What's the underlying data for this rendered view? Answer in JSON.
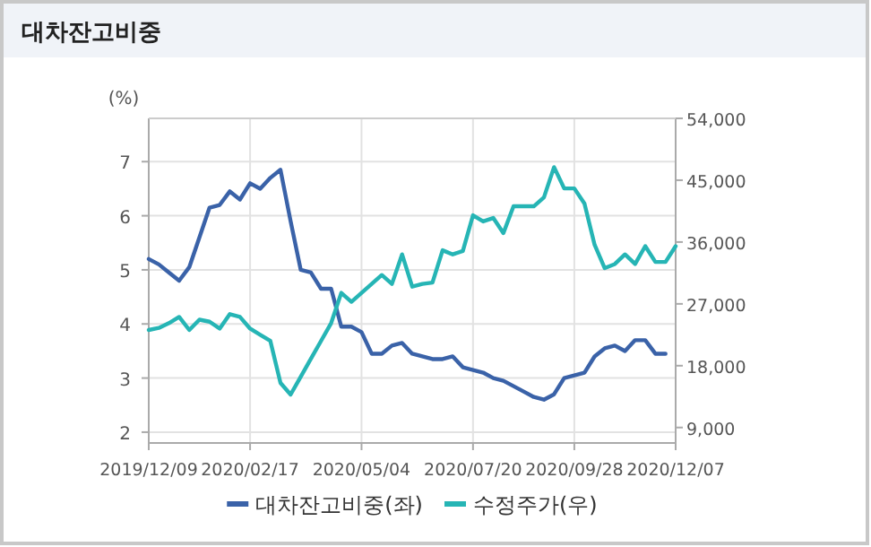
{
  "chart_data": {
    "type": "line",
    "title": "대차잔고비중",
    "ylabel": "(%)",
    "x": [
      "2019-12-09",
      "2019-12-16",
      "2019-12-23",
      "2019-12-30",
      "2020-01-06",
      "2020-01-13",
      "2020-01-20",
      "2020-01-27",
      "2020-02-03",
      "2020-02-10",
      "2020-02-17",
      "2020-02-24",
      "2020-03-02",
      "2020-03-09",
      "2020-03-16",
      "2020-03-23",
      "2020-03-30",
      "2020-04-06",
      "2020-04-13",
      "2020-04-20",
      "2020-04-27",
      "2020-05-04",
      "2020-05-11",
      "2020-05-18",
      "2020-05-25",
      "2020-06-01",
      "2020-06-08",
      "2020-06-15",
      "2020-06-22",
      "2020-06-29",
      "2020-07-06",
      "2020-07-13",
      "2020-07-20",
      "2020-07-27",
      "2020-08-03",
      "2020-08-10",
      "2020-08-17",
      "2020-08-24",
      "2020-08-31",
      "2020-09-07",
      "2020-09-14",
      "2020-09-21",
      "2020-09-28",
      "2020-10-05",
      "2020-10-12",
      "2020-10-19",
      "2020-10-26",
      "2020-11-02",
      "2020-11-09",
      "2020-11-16",
      "2020-11-23",
      "2020-11-30",
      "2020-12-07"
    ],
    "series": [
      {
        "name": "대차잔고비중(좌)",
        "color": "#3a62a8",
        "values": [
          5.2,
          5.1,
          4.95,
          4.8,
          5.05,
          5.6,
          6.15,
          6.2,
          6.45,
          6.3,
          6.6,
          6.5,
          6.7,
          6.85,
          5.9,
          5.0,
          4.95,
          4.65,
          4.65,
          3.95,
          3.95,
          3.85,
          3.45,
          3.45,
          3.6,
          3.65,
          3.45,
          3.4,
          3.35,
          3.35,
          3.4,
          3.2,
          3.15,
          3.1,
          3.0,
          2.95,
          2.85,
          2.75,
          2.65,
          2.6,
          2.7,
          3.0,
          3.05,
          3.1,
          3.4,
          3.55,
          3.6,
          3.5,
          3.7,
          3.7,
          3.45,
          3.45,
          null
        ]
      },
      {
        "name": "수정주가(우)",
        "color": "#26b5b5",
        "axis": "y2",
        "values": [
          23200,
          23500,
          24200,
          25100,
          23200,
          24700,
          24400,
          23400,
          25500,
          25100,
          23400,
          22500,
          21600,
          15500,
          13800,
          16400,
          19000,
          21600,
          24200,
          28600,
          27300,
          28600,
          29900,
          31200,
          29900,
          34200,
          29500,
          29900,
          30100,
          34800,
          34200,
          34700,
          39900,
          39000,
          39500,
          37300,
          41200,
          41200,
          41200,
          42500,
          46900,
          43800,
          43800,
          41600,
          35600,
          32200,
          32800,
          34200,
          32800,
          35400,
          33100,
          33100,
          35400
        ]
      }
    ],
    "xlim": [
      "2019-12-09",
      "2020-12-07"
    ],
    "xticks": [
      {
        "value": "2019-12-09",
        "label": "2019/12/09"
      },
      {
        "value": "2020-02-17",
        "label": "2020/02/17"
      },
      {
        "value": "2020-05-04",
        "label": "2020/05/04"
      },
      {
        "value": "2020-07-20",
        "label": "2020/07/20"
      },
      {
        "value": "2020-09-28",
        "label": "2020/09/28"
      },
      {
        "value": "2020-12-07",
        "label": "2020/12/07"
      }
    ],
    "ylim": [
      1.8,
      7.8
    ],
    "yticks": [
      2,
      3,
      4,
      5,
      6,
      7
    ],
    "y2lim": [
      6750,
      54000
    ],
    "y2ticks": [
      {
        "value": 9000,
        "label": "9,000"
      },
      {
        "value": 18000,
        "label": "18,000"
      },
      {
        "value": 27000,
        "label": "27,000"
      },
      {
        "value": 36000,
        "label": "36,000"
      },
      {
        "value": 45000,
        "label": "45,000"
      },
      {
        "value": 54000,
        "label": "54,000"
      }
    ],
    "grid": true,
    "legend": "bottom"
  }
}
